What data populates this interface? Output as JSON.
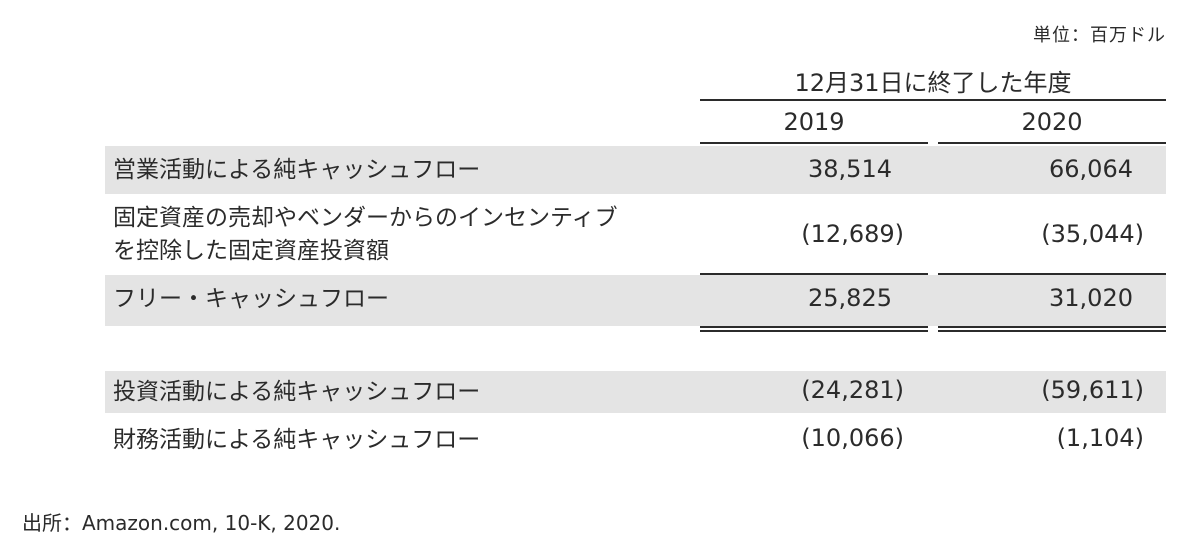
{
  "unit_label": "単位：百万ドル",
  "period_header": "12月31日に終了した年度",
  "years": [
    "2019",
    "2020"
  ],
  "rows": [
    {
      "label": "営業活動による純キャッシュフロー",
      "values": [
        "38,514",
        "66,064"
      ]
    },
    {
      "label_lines": [
        "固定資産の売却やベンダーからのインセンティブ",
        "を控除した固定資産投資額"
      ],
      "values": [
        "(12,689)",
        "(35,044)"
      ]
    },
    {
      "label": "フリー・キャッシュフロー",
      "values": [
        "25,825",
        "31,020"
      ]
    },
    {
      "label": "投資活動による純キャッシュフロー",
      "values": [
        "(24,281)",
        "(59,611)"
      ]
    },
    {
      "label": "財務活動による純キャッシュフロー",
      "values": [
        "(10,066)",
        "(1,104)"
      ]
    }
  ],
  "source": "出所：Amazon.com, 10-K, 2020."
}
